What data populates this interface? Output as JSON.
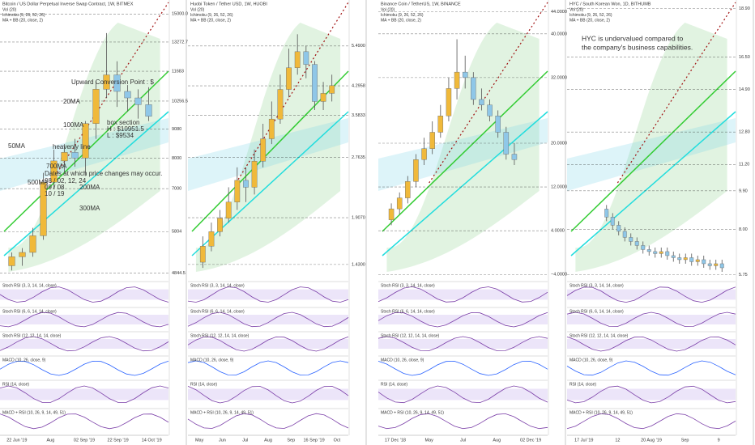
{
  "chart_data": [
    {
      "type": "candlestick",
      "title": "Bitcoin / US Dollar Perpetual Inverse Swap Contract, 1W, BITMEX",
      "indicators": [
        "Vol (20)",
        "Ichimoku (9, 26, 52, 26)",
        "MA + BB (20, close, 2)"
      ],
      "panes": [
        "Stoch RSI (3, 3, 14, 14, close)",
        "Stoch RSI (6, 6, 14, 14, close)",
        "Stoch RSI (12, 12, 14, 14, close)",
        "MACD (10, 26, close, 9)",
        "RSI (14, close)",
        "MACD + RSI (10, 26, 9, 14, 49, 51)"
      ],
      "annotations": [
        "Upward Conversion Point : $",
        "20MA",
        "100MA",
        "50MA",
        "heavenly line",
        "box section",
        "H : $10951.5",
        "L : $9534",
        "700MA",
        "200MA",
        "500MA",
        "300MA",
        "Dates at which price changes may occur.",
        "08 / 02, 12, 24",
        "09 / 08",
        "10 / 19"
      ],
      "categories": [
        "22 Jun '19",
        "Aug",
        "02 Sep '19",
        "22 Sep '19",
        "14 Oct '19"
      ],
      "open": [
        5000,
        5200,
        5300,
        5700,
        7200,
        7900,
        8200,
        8000,
        9300,
        10800,
        11500,
        10700,
        10400,
        10100
      ],
      "high": [
        5300,
        5400,
        5900,
        7500,
        8300,
        8500,
        8700,
        9400,
        11200,
        13800,
        12200,
        11000,
        10800,
        10900
      ],
      "low": [
        4900,
        5000,
        5200,
        5600,
        7000,
        7500,
        7700,
        7400,
        8700,
        10400,
        10000,
        9800,
        9500,
        9400
      ],
      "close": [
        5200,
        5300,
        5700,
        7200,
        7900,
        8200,
        8000,
        9300,
        10800,
        11500,
        10700,
        10400,
        10100,
        9600
      ],
      "up_color": "#f0b93a",
      "down_color": "#8fc7e8",
      "log_scale": true,
      "ylim": [
        4700,
        15500
      ],
      "yticks": [
        4844.5,
        5804,
        7000,
        8000,
        9080,
        10256.5,
        11683,
        13272.7,
        {
          "value": 15000,
          "label": "15000.0"
        }
      ]
    },
    {
      "type": "candlestick",
      "title": "Huobi Token / Tether USD, 1W, HUOBI",
      "indicators": [
        "Vol (20)",
        "Ichimoku (9, 26, 52, 26)",
        "MA + BB (20, close, 2)"
      ],
      "panes": [
        "Stoch RSI (3, 3, 14, 14, close)",
        "Stoch RSI (6, 6, 14, 14, close)",
        "Stoch RSI (12, 12, 14, 14, close)",
        "MACD (10, 26, close, 9)",
        "RSI (14, close)",
        "MACD + RSI (10, 26, 9, 14, 49, 51)"
      ],
      "annotations": [],
      "categories": [
        "May",
        "Jun",
        "Jul",
        "Aug",
        "Sep",
        "16 Sep '19",
        "Oct"
      ],
      "open": [
        1.45,
        1.6,
        1.75,
        1.9,
        2.1,
        2.4,
        2.3,
        2.7,
        3.1,
        3.5,
        4.2,
        4.8,
        5.3,
        4.9,
        3.9,
        4.1
      ],
      "high": [
        1.7,
        1.85,
        2.0,
        2.3,
        2.6,
        2.6,
        2.9,
        3.4,
        3.9,
        4.6,
        5.4,
        5.9,
        5.5,
        5.0,
        4.4,
        4.6
      ],
      "low": [
        1.4,
        1.55,
        1.7,
        1.85,
        2.0,
        2.1,
        2.2,
        2.6,
        3.0,
        3.4,
        4.0,
        4.6,
        4.5,
        3.7,
        3.7,
        3.9
      ],
      "close": [
        1.6,
        1.75,
        1.9,
        2.1,
        2.4,
        2.3,
        2.7,
        3.1,
        3.5,
        4.2,
        4.8,
        5.3,
        4.9,
        3.9,
        4.1,
        4.3
      ],
      "up_color": "#f0b93a",
      "down_color": "#8fc7e8",
      "log_scale": true,
      "ylim": [
        1.3,
        7
      ],
      "yticks": [
        {
          "value": 1.43,
          "label": "1.4300"
        },
        {
          "value": 1.907,
          "label": "1.9070"
        },
        {
          "value": 2.7635,
          "label": "2.7635"
        },
        {
          "value": 3.5833,
          "label": "3.5833"
        },
        {
          "value": 4.2958,
          "label": "4.2958"
        },
        {
          "value": 5.49,
          "label": "5.4900"
        }
      ]
    },
    {
      "type": "candlestick",
      "title": "Binance Coin / TetherUS, 1W, BINANCE",
      "indicators": [
        "Vol (20)",
        "Ichimoku (9, 26, 52, 26)",
        "MA + BB (20, close, 2)"
      ],
      "panes": [
        "Stoch RSI (3, 3, 14, 14, close)",
        "Stoch RSI (6, 6, 14, 14, close)",
        "Stoch RSI (12, 12, 14, 14, close)",
        "MACD (10, 26, close, 9)",
        "RSI (14, close)",
        "MACD + RSI (10, 26, 9, 14, 49, 51)"
      ],
      "annotations": [],
      "categories": [
        "17 Dec '18",
        "May",
        "Jul",
        "Aug",
        "02 Dec '19"
      ],
      "open": [
        6,
        8,
        10,
        13,
        17,
        19,
        22,
        25,
        30,
        33,
        32,
        28,
        27,
        25,
        22,
        18
      ],
      "high": [
        9,
        11,
        14,
        18,
        21,
        24,
        27,
        32,
        39,
        36,
        33,
        30,
        28,
        26,
        23,
        20
      ],
      "low": [
        5,
        7,
        9,
        12,
        16,
        18,
        21,
        24,
        28,
        30,
        27,
        26,
        24,
        21,
        17,
        16
      ],
      "close": [
        8,
        10,
        13,
        17,
        19,
        22,
        25,
        30,
        33,
        32,
        28,
        27,
        25,
        22,
        18,
        17
      ],
      "up_color": "#f0b93a",
      "down_color": "#8fc7e8",
      "log_scale": false,
      "ylim": [
        -5,
        45
      ],
      "yticks": [
        {
          "value": -4,
          "label": "−4.0000"
        },
        {
          "value": 4,
          "label": "4.0000"
        },
        {
          "value": 12,
          "label": "12.0000"
        },
        {
          "value": 20,
          "label": "20.0000"
        },
        {
          "value": 32,
          "label": "32.0000"
        },
        {
          "value": 40,
          "label": "40.0000"
        },
        {
          "value": 44,
          "label": "44.0000"
        }
      ]
    },
    {
      "type": "candlestick",
      "title": "HYC / South Korean Won, 1D, BITHUMB",
      "indicators": [
        "Vol (20)",
        "Ichimoku (9, 26, 52, 26)",
        "MA + BB (20, close, 2)"
      ],
      "panes": [
        "Stoch RSI (3, 3, 14, 14, close)",
        "Stoch RSI (6, 6, 14, 14, close)",
        "Stoch RSI (12, 12, 14, 14, close)",
        "MACD (10, 26, close, 9)",
        "RSI (14, close)",
        "MACD + RSI (10, 26, 9, 14, 49, 51)"
      ],
      "annotations": [
        "HYC is undervalued compared to",
        "the company's business capabilities."
      ],
      "categories": [
        "17 Jul '19",
        "12",
        "20 Aug '19",
        "Sep",
        "9"
      ],
      "open": [
        9.0,
        8.6,
        8.2,
        7.9,
        7.6,
        7.4,
        7.2,
        7.0,
        6.9,
        6.8,
        6.9,
        6.7,
        6.6,
        6.5,
        6.6,
        6.4,
        6.5,
        6.3,
        6.2,
        6.3
      ],
      "high": [
        9.2,
        8.8,
        8.4,
        8.1,
        7.8,
        7.6,
        7.4,
        7.2,
        7.1,
        7.1,
        7.1,
        6.9,
        6.8,
        6.8,
        6.8,
        6.7,
        6.7,
        6.5,
        6.5,
        6.5
      ],
      "low": [
        8.4,
        8.0,
        7.7,
        7.4,
        7.2,
        7.0,
        6.8,
        6.7,
        6.6,
        6.6,
        6.5,
        6.4,
        6.3,
        6.3,
        6.2,
        6.2,
        6.1,
        6.0,
        6.0,
        5.9
      ],
      "close": [
        8.6,
        8.2,
        7.9,
        7.6,
        7.4,
        7.2,
        7.0,
        6.9,
        6.8,
        6.9,
        6.7,
        6.6,
        6.5,
        6.6,
        6.4,
        6.5,
        6.3,
        6.2,
        6.3,
        6.1
      ],
      "up_color": "#f0b93a",
      "down_color": "#8fc7e8",
      "log_scale": false,
      "ylim": [
        5.5,
        19
      ],
      "yticks": [
        {
          "value": 5.75,
          "label": "5.75"
        },
        {
          "value": 8,
          "label": "8.00"
        },
        {
          "value": 9.9,
          "label": "9.90"
        },
        {
          "value": 11.2,
          "label": "11.20"
        },
        {
          "value": 12.8,
          "label": "12.80"
        },
        {
          "value": 14.9,
          "label": "14.90"
        },
        {
          "value": 16.5,
          "label": "16.50"
        },
        {
          "value": 18.9,
          "label": "18.90"
        }
      ]
    }
  ]
}
